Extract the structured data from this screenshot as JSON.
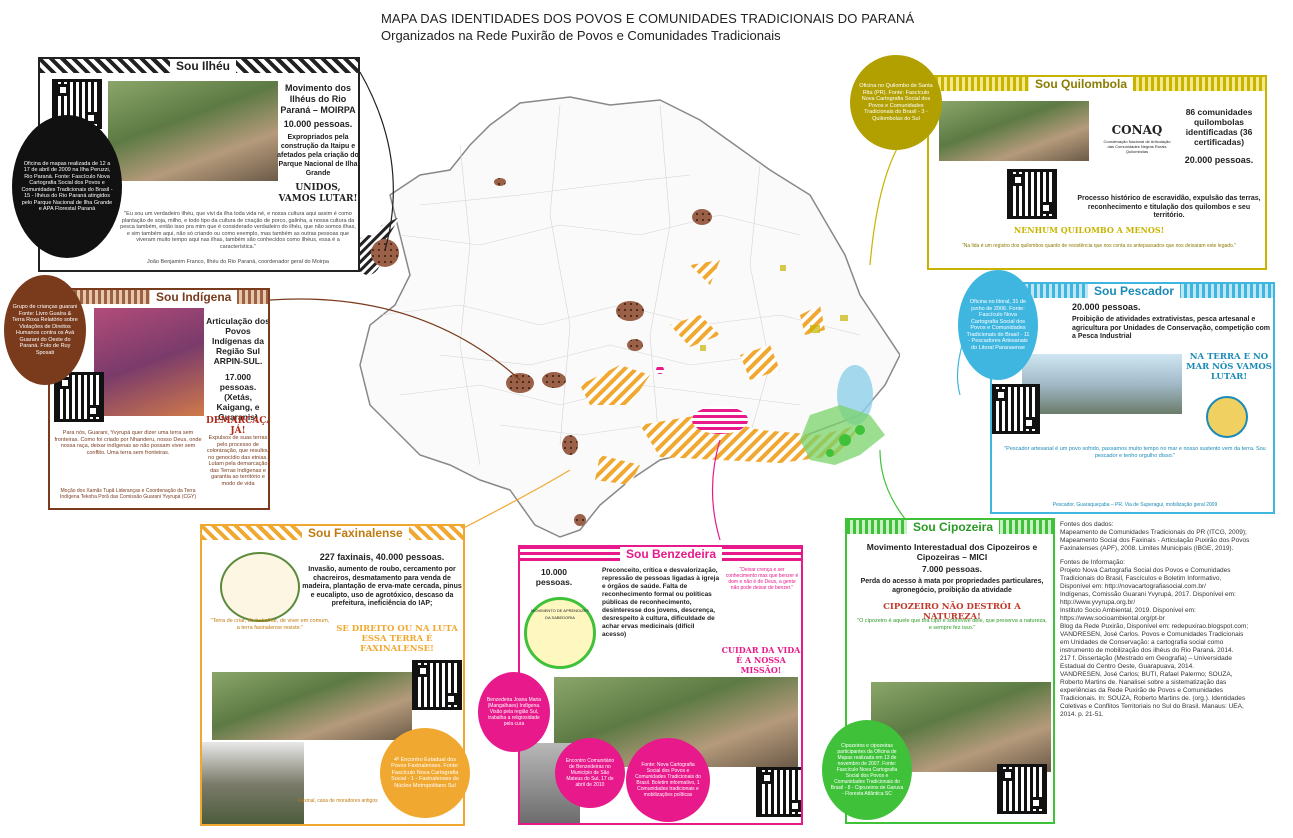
{
  "title": {
    "line1": "MAPA DAS IDENTIDADES DOS POVOS E COMUNIDADES TRADICIONAIS DO PARANÁ",
    "line2": "Organizados na Rede Puxirão de Povos e Comunidades Tradicionais"
  },
  "colors": {
    "ilheu": "#222222",
    "indigena": "#7a3b1d",
    "quilombola": "#c8b400",
    "pescador": "#3fb6e0",
    "faxinalense": "#f0a830",
    "benzedeira": "#e8198b",
    "cipozeira": "#3fc23a"
  },
  "ilheu": {
    "header": "Sou Ilhéu",
    "movement": "Movimento dos Ilhéus do Rio Paraná – MOIRPA",
    "population": "10.000 pessoas.",
    "threat": "Expropriados pela construção da Itaipu e afetados pela criação do Parque Nacional de Ilha Grande",
    "slogan": "UNIDOS, VAMOS LUTAR!",
    "quote": "\"Eu sou um verdadeiro ilhéu, que vivi da ilha toda vida né, e nossa cultura aqui assim é como plantação de soja, milho, e todo tipo da cultura de criação de porco, galinha, a nossa cultura da pesca também, então isso pra mim que é considerado verdadeiro do ilhéu, que não somos ilhas, e sim também aqui, não só criando ou como exemplo, mas também as outras pessoas que viveram muito tempo aqui nas ilhas, também são conhecidos como ilhéus, essa é a característica.\"",
    "quote_author": "João Benjamim Franco, Ilhéu do Rio Paraná, coordenador geral do Moirpa",
    "circle": "Oficina de mapas realizada de 12 a 17 de abril de 2009 na Ilha Peruzzi, Rio Paraná. Fonte: Fascículo Nova Cartografia Social dos Povos e Comunidades Tradicionais do Brasil - 15 - Ilhéus do Rio Paraná atingidos pelo Parque Nacional de Ilha Grande e APA Florestal Paraná"
  },
  "indigena": {
    "header": "Sou Indígena",
    "movement": "Articulação dos Povos Indígenas da Região Sul ARPIN-SUL.",
    "population": "17.000 pessoas. (Xetás, Kaigang, e Guaranis)",
    "slogan": "DEMARCAÇÃO JÁ!",
    "threat": "Expulsos de suas terras pelo processo de colonização, que resultou no genocídio das etnias. Lutam pela demarcação das Terras Indígenas e garantia ao território e modo de vida",
    "quote": "Para nós, Guarani, Yvyrupá quer dizer uma terra sem fronteiras. Como foi criado por Nhanderu, nosso Deus, onde nossa raça, deixar indígenas ao não possam viver sem conflito. Uma terra sem fronteiras.",
    "quote_author": "Moção dos Xamãs Tupã Lideranças e Coordenação da Terra Indígena Tekoha Porã das Comissão Guarani Yvyrupá (CGY)",
    "circle": "Grupo de crianças guarani Fonte: Livro Guaíra & Terra Roxa Relatório sobre Violações de Direitos Humanos contra os Avá Guarani do Oeste do Paraná. Foto de Ruy Sposati"
  },
  "quilombola": {
    "header": "Sou Quilombola",
    "logo": "CONAQ",
    "logo_sub": "Coordenação Nacional de Articulação das Comunidades Negras Rurais Quilombolas",
    "communities": "86 comunidades quilombolas identificadas (36 certificadas)",
    "population": "20.000 pessoas.",
    "threat": "Processo histórico de escravidão, expulsão das terras, reconhecimento e titulação dos quilombos e seu território.",
    "slogan": "NENHUM QUILOMBO A MENOS!",
    "quote": "\"Na lida é um registro dos quilombos quanto de resistência que nos conta os antepassados que nos deixaram este legado.\"",
    "circle": "Oficina no Quilombo de Santa Rita (PR). Fonte: Fascículo Nova Cartografia Social dos Povos e Comunidades Tradicionais do Brasil - 3 - Quilombolas do Sul"
  },
  "pescador": {
    "header": "Sou Pescador",
    "population": "20.000 pessoas.",
    "threat": "Proibição de atividades extrativistas, pesca artesanal e agricultura por Unidades de Conservação, competição com a Pesca Industrial",
    "slogan": "NA TERRA E NO MAR NÓS VAMOS LUTAR!",
    "quote": "\"Pescador artesanal é um povo sofrido, passamos muito tempo no mar e nosso sustento vem da terra. Sou pescador e tenho orgulho disso.\"",
    "quote_author": "Pescador, Guaraqueçaba – PR. Via de Superagui, mobilização geral 2009",
    "circle": "Oficina no litoral, 31 de junho de 2006. Fonte: Fascículo Nova Cartografia Social dos Povos e Comunidades Tradicionais do Brasil - 11 - Pescadores Artesanais do Litoral Paranaense"
  },
  "faxinalense": {
    "header": "Sou Faxinalense",
    "population": "227 faxinais, 40.000 pessoas.",
    "threat": "Invasão, aumento de roubo, cercamento por chacreiros, desmatamento para venda de madeira, plantação de erva-mate cercada, pinus e eucalipto, uso de agrotóxico, descaso da prefeitura, ineficiência do IAP;",
    "slogan": "SE DIREITO OU NA LUTA ESSA TERRA É FAXINALENSE!",
    "quote": "\"Terra de criar, de trabalhar, de viver em comum, a terra faxinalense resiste.\"",
    "circle": "4º Encontro Estadual dos Povos Faxinalenses. Fonte: Fascículo Nova Cartografia Social - 1 - Faxinalenses do Núcleo Metropolitano Sul",
    "caption": "Faxinal, casa de moradores antigos"
  },
  "benzedeira": {
    "header": "Sou Benzedeira",
    "population": "10.000 pessoas.",
    "threat": "Preconceito, crítica e desvalorização, repressão de pessoas ligadas à igreja e órgãos de saúde. Falta de reconhecimento formal ou políticas públicas de reconhecimento, desinteresse dos jovens, descrença, desrespeito à cultura, dificuldade de achar ervas medicinais (difícil acesso)",
    "logo": "MOVIMENTO DE APRENDIZES DA SABEDORIA",
    "quote": "\"Deixar crença e ser conhecimento mas que benzer é dom e não é de Deus, a gente não pode deixar de benzer.\"",
    "slogan": "CUIDAR DA VIDA É A NOSSA MISSÃO!",
    "circle1": "Benzedeira Joana Maria (Mangalhaes) Indígena. Visão pela região Sul, trabalha a religiosidade pela cura",
    "circle2": "Encontro Comunitário de Benzedeiras no Município de São Mateus do Sul, 17 de abril de 2010",
    "circle3": "Fonte: Nova Cartografia Social dos Povos e Comunidades Tradicionais do Brasil. Boletim informativo, 1 Comunidades tradicionais e mobilizações políticas"
  },
  "cipozeira": {
    "header": "Sou Cipozeira",
    "movement": "Movimento Interestadual dos Cipozeiros e Cipozeiras – MICI",
    "population": "7.000 pessoas.",
    "threat": "Perda do acesso à mata por propriedades particulares, agronegócio, proibição da atividade",
    "slogan": "CIPOZEIRO NÃO DESTRÓI A NATUREZA!",
    "quote": "\"O cipozeiro é aquele que tira cipó e sobrevive dele, que preserva a natureza, e sempre fez isso.\"",
    "circle": "Cipozeiros e cipozeiras participantes da Oficina de Mapas realizada em 13 de novembro de 2007. Fonte: Fascículo Nova Cartografia Social dos Povos e Comunidades Tradicionais do Brasil - 8 - Cipozeiros de Garuva - Floresta Atlântica SC"
  },
  "sources": {
    "data_header": "Fontes dos dados:",
    "data_lines": [
      "Mapeamento de Comunidades Tradicionais do PR (ITCG, 2009);",
      "Mapeamento Social dos Faxinais - Articulação Puxirão dos Povos",
      "Faxinalenses (APF), 2008. Limites Municipais (IBGE, 2019)."
    ],
    "info_header": "Fontes de Informação:",
    "info_lines": [
      "Projeto Nova Cartografia Social dos Povos e Comunidades",
      "Tradicionais do Brasil, Fascículos e Boletim Informativo,",
      "Disponível em: http://novacartografiasocial.com.br/",
      "Indígenas, Comissão Guarani Yvyrupá, 2017. Disponível em:",
      "http://www.yvyrupa.org.br/",
      "Instituto Socio Ambiental, 2019. Disponível em:",
      "https://www.socioambiental.org/pt-br",
      "Blog da Rede Puxirão, Disponível em: redepuxirao.blogspot.com;",
      "VANDRESEN, José Carlos. Povos e Comunidades Tradicionais",
      "em Unidades de Conservação: a cartografia social como",
      "instrumento de mobilização dos ilhéus do Rio Paraná. 2014.",
      "217 f. Dissertação (Mestrado em Geografia) – Universidade",
      "Estadual do Centro Oeste, Guarapuava, 2014.",
      "VANDRESEN, José Carlos; BUTI, Rafael Palermo; SOUZA,",
      "Roberto Martins de. Nanalisei sobre a sistematização das",
      "experiências da Rede Puxirão de Povos e Comunidades",
      "Tradicionais. In: SOUZA, Roberto Martins de. (org.). Identidades",
      "Coletivas e Conflitos Territoriais no Sul do Brasil. Manaus: UEA,",
      "2014. p. 21-51."
    ]
  }
}
